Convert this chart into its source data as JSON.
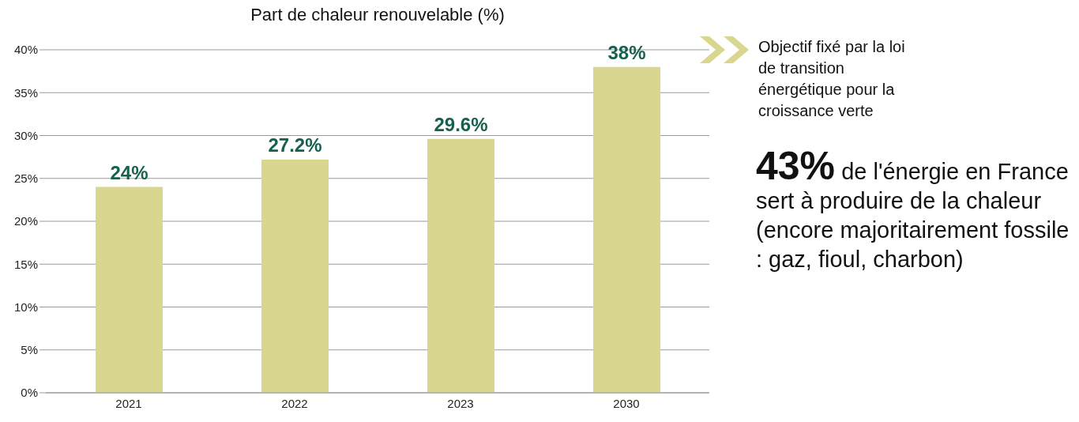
{
  "chart_data": {
    "type": "bar",
    "title": "Part de chaleur renouvelable (%)",
    "categories": [
      "2021",
      "2022",
      "2023",
      "2030"
    ],
    "values": [
      24,
      27.2,
      29.6,
      38
    ],
    "color": "#d9d690",
    "value_labels": [
      "24%",
      "27.2%",
      "29.6%",
      "38%"
    ],
    "ylim": [
      0,
      40
    ],
    "yticks": [
      {
        "value": 0,
        "label": "0%"
      },
      {
        "value": 5,
        "label": "5%"
      },
      {
        "value": 10,
        "label": "10%"
      },
      {
        "value": 15,
        "label": "15%"
      },
      {
        "value": 20,
        "label": "20%"
      },
      {
        "value": 25,
        "label": "25%"
      },
      {
        "value": 30,
        "label": "30%"
      },
      {
        "value": 35,
        "label": "35%"
      },
      {
        "value": 40,
        "label": "40%"
      }
    ],
    "grid": "y",
    "legend": false,
    "annotations": [
      "Objectif fixé par la loi de transition énergétique pour la croissance verte",
      "43% de l'énergie en France sert à produire de la chaleur (encore majoritairement fossile : gaz, fioul, charbon)"
    ]
  }
}
